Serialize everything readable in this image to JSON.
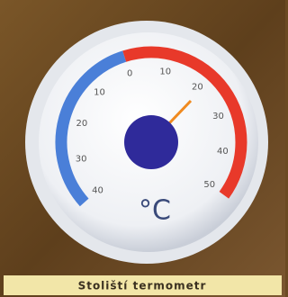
{
  "dial": {
    "labels": [
      "40",
      "30",
      "20",
      "10",
      "0",
      "10",
      "20",
      "30",
      "40",
      "50"
    ],
    "unit": "°C"
  },
  "caption": "Stoliští termometr"
}
